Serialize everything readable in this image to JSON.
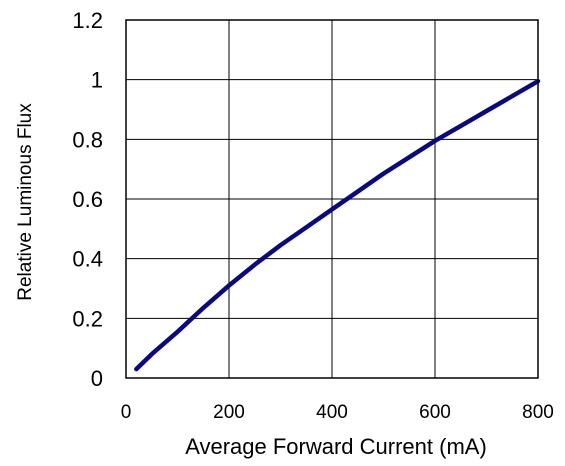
{
  "chart_data": {
    "type": "line",
    "title": "",
    "xlabel": "Average Forward Current (mA)",
    "ylabel": "Relative Luminous Flux",
    "xlim": [
      0,
      800
    ],
    "ylim": [
      0,
      1.2
    ],
    "grid": true,
    "xticks": [
      0,
      200,
      400,
      600,
      800
    ],
    "yticks": [
      0,
      0.2,
      0.4,
      0.6,
      0.8,
      1,
      1.2
    ],
    "xtick_labels": [
      "0",
      "200",
      "400",
      "600",
      "800"
    ],
    "ytick_labels": [
      "0",
      "0.2",
      "0.4",
      "0.6",
      "0.8",
      "1",
      "1.2"
    ],
    "series": [
      {
        "color": "#0a0a80",
        "x": [
          20,
          50,
          100,
          150,
          200,
          250,
          300,
          350,
          400,
          450,
          500,
          550,
          600,
          650,
          700,
          750,
          800
        ],
        "y": [
          0.03,
          0.08,
          0.155,
          0.235,
          0.31,
          0.38,
          0.445,
          0.505,
          0.565,
          0.625,
          0.685,
          0.74,
          0.795,
          0.845,
          0.895,
          0.945,
          0.995
        ]
      }
    ]
  }
}
